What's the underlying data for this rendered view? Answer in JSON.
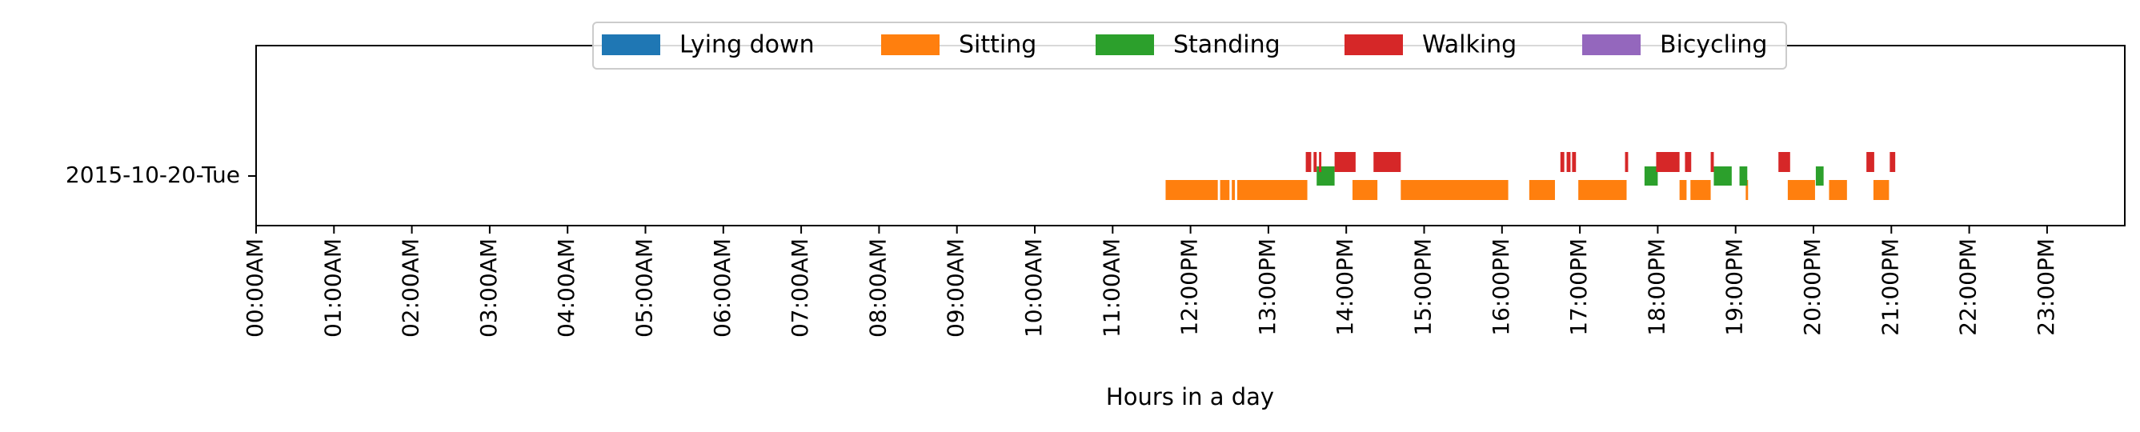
{
  "chart_data": {
    "type": "timeline",
    "xlabel": "Hours in a day",
    "ylabel": "",
    "xlim": [
      0,
      24
    ],
    "x_ticks": [
      "00:00AM",
      "01:00AM",
      "02:00AM",
      "03:00AM",
      "04:00AM",
      "05:00AM",
      "06:00AM",
      "07:00AM",
      "08:00AM",
      "09:00AM",
      "10:00AM",
      "11:00AM",
      "12:00PM",
      "13:00PM",
      "14:00PM",
      "15:00PM",
      "16:00PM",
      "17:00PM",
      "18:00PM",
      "19:00PM",
      "20:00PM",
      "21:00PM",
      "22:00PM",
      "23:00PM"
    ],
    "row_label": "2015-10-20-Tue",
    "legend_position": "top-center",
    "grid": false,
    "series": [
      {
        "name": "Lying down",
        "color": "#1f77b4",
        "intervals": []
      },
      {
        "name": "Sitting",
        "color": "#ff7f0e",
        "intervals": [
          [
            11.68,
            12.35
          ],
          [
            12.38,
            12.5
          ],
          [
            12.53,
            12.57
          ],
          [
            12.6,
            13.5
          ],
          [
            14.08,
            14.4
          ],
          [
            14.7,
            16.08
          ],
          [
            16.35,
            16.68
          ],
          [
            16.98,
            17.6
          ],
          [
            18.28,
            18.37
          ],
          [
            18.42,
            18.68
          ],
          [
            19.13,
            19.16
          ],
          [
            19.67,
            20.02
          ],
          [
            20.2,
            20.43
          ],
          [
            20.77,
            20.97
          ]
        ]
      },
      {
        "name": "Standing",
        "color": "#2ca02c",
        "intervals": [
          [
            13.62,
            13.85
          ],
          [
            17.83,
            18.0
          ],
          [
            18.72,
            18.95
          ],
          [
            19.05,
            19.15
          ],
          [
            20.03,
            20.13
          ]
        ]
      },
      {
        "name": "Walking",
        "color": "#d62728",
        "intervals": [
          [
            13.48,
            13.55
          ],
          [
            13.58,
            13.62
          ],
          [
            13.65,
            13.68
          ],
          [
            13.85,
            14.12
          ],
          [
            14.35,
            14.7
          ],
          [
            16.75,
            16.8
          ],
          [
            16.83,
            16.88
          ],
          [
            16.9,
            16.95
          ],
          [
            17.58,
            17.62
          ],
          [
            17.98,
            18.28
          ],
          [
            18.35,
            18.43
          ],
          [
            18.68,
            18.72
          ],
          [
            19.55,
            19.7
          ],
          [
            20.68,
            20.78
          ],
          [
            20.98,
            21.05
          ]
        ]
      },
      {
        "name": "Bicycling",
        "color": "#9467bd",
        "intervals": []
      }
    ]
  }
}
